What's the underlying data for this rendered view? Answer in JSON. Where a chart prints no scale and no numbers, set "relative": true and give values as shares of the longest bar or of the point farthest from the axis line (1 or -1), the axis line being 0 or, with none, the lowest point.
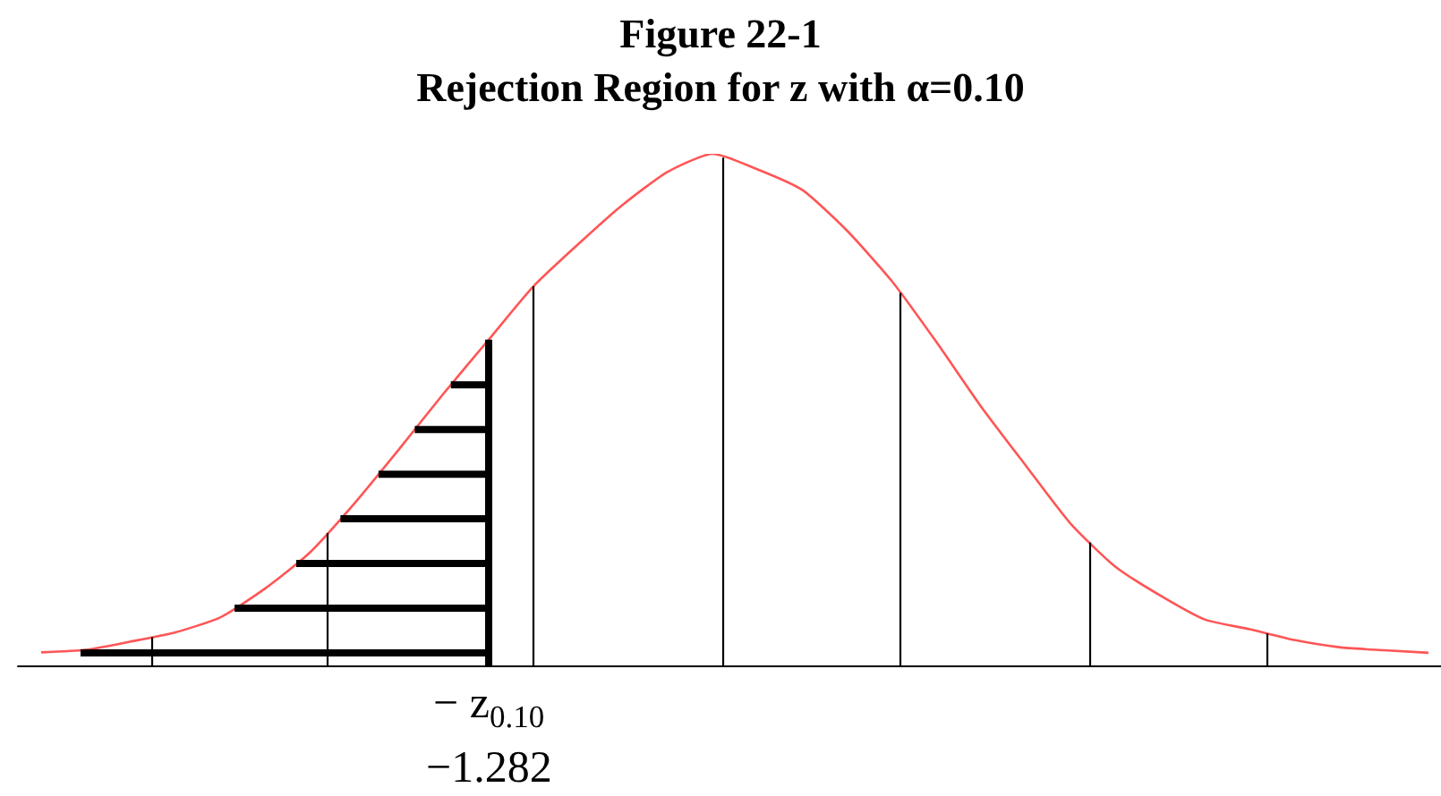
{
  "chart_data": {
    "type": "line",
    "title": "Figure 22-1",
    "subtitle": "Rejection Region for z with α=0.10",
    "relative": true,
    "categories": [
      null,
      null,
      null,
      null,
      null,
      null,
      null,
      null,
      null,
      null,
      null,
      null,
      null,
      null,
      null,
      null,
      null,
      null,
      null,
      null,
      null,
      null,
      null,
      null,
      null,
      null,
      null,
      null,
      null,
      null,
      null,
      null
    ],
    "series": [
      {
        "color": "#ff5555",
        "values": [
          0.029,
          0.034,
          0.05,
          0.068,
          0.097,
          0.153,
          0.223,
          0.319,
          0.425,
          0.534,
          0.638,
          0.742,
          0.824,
          0.901,
          0.965,
          1,
          0.97,
          0.93,
          0.851,
          0.753,
          0.634,
          0.508,
          0.393,
          0.28,
          0.196,
          0.14,
          0.093,
          0.074,
          0.053,
          0.039,
          0.033,
          0.028
        ]
      }
    ],
    "annotations": [
      "− z$_{0.10}$",
      "−1.282"
    ],
    "grid": false,
    "legend": false,
    "marker": "none",
    "line_style": "solid"
  }
}
